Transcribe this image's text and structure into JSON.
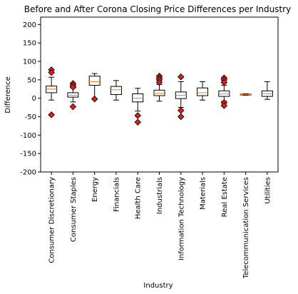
{
  "chart_data": {
    "type": "box",
    "title": "Before and After Corona Closing Price Differences per Industry",
    "xlabel": "Industry",
    "ylabel": "Difference",
    "ylim": [
      -200,
      220
    ],
    "yticks": [
      -200,
      -150,
      -100,
      -50,
      0,
      50,
      100,
      150,
      200
    ],
    "grid": false,
    "legend": "none",
    "categories": [
      "Consumer Discretionary",
      "Consumer Staples",
      "Energy",
      "Financials",
      "Health Care",
      "Industrials",
      "Information Technology",
      "Materials",
      "Real Estate",
      "Telecommunication Services",
      "Utilities"
    ],
    "boxes": [
      {
        "category": "Consumer Discretionary",
        "whisker_low": -5,
        "q1": 15,
        "median": 25,
        "q3": 33,
        "whisker_high": 57,
        "outliers": [
          77,
          70,
          -45
        ]
      },
      {
        "category": "Consumer Staples",
        "whisker_low": -10,
        "q1": 3,
        "median": 8,
        "q3": 15,
        "whisker_high": 28,
        "outliers": [
          40,
          35,
          30,
          -23
        ]
      },
      {
        "category": "Energy",
        "whisker_low": -2,
        "q1": 35,
        "median": 45,
        "q3": 60,
        "whisker_high": 67,
        "outliers": [
          -2
        ]
      },
      {
        "category": "Financials",
        "whisker_low": -5,
        "q1": 10,
        "median": 23,
        "q3": 32,
        "whisker_high": 48,
        "outliers": []
      },
      {
        "category": "Health Care",
        "whisker_low": -35,
        "q1": -10,
        "median": 0,
        "q3": 12,
        "whisker_high": 27,
        "outliers": [
          -47,
          -65
        ]
      },
      {
        "category": "Industrials",
        "whisker_low": -8,
        "q1": 7,
        "median": 13,
        "q3": 22,
        "whisker_high": 37,
        "outliers": [
          60,
          55,
          50,
          43
        ]
      },
      {
        "category": "Information Technology",
        "whisker_low": -25,
        "q1": -1,
        "median": 8,
        "q3": 17,
        "whisker_high": 45,
        "outliers": [
          58,
          -33,
          -50
        ]
      },
      {
        "category": "Materials",
        "whisker_low": -5,
        "q1": 7,
        "median": 15,
        "q3": 28,
        "whisker_high": 45,
        "outliers": []
      },
      {
        "category": "Real Estate",
        "whisker_low": -8,
        "q1": 5,
        "median": 12,
        "q3": 20,
        "whisker_high": 35,
        "outliers": [
          55,
          50,
          43,
          -12,
          -20
        ]
      },
      {
        "category": "Telecommunication Services",
        "whisker_low": 8,
        "q1": 9,
        "median": 10,
        "q3": 11,
        "whisker_high": 12,
        "outliers": []
      },
      {
        "category": "Utilities",
        "whisker_low": -3,
        "q1": 5,
        "median": 12,
        "q3": 20,
        "whisker_high": 45,
        "outliers": []
      }
    ],
    "colors": {
      "box": "#ffffff",
      "box_edge": "#000000",
      "median": "#ff7f0e",
      "outlier_fill": "#e31a1c",
      "outlier_edge": "#000000",
      "axes": "#000000"
    }
  }
}
